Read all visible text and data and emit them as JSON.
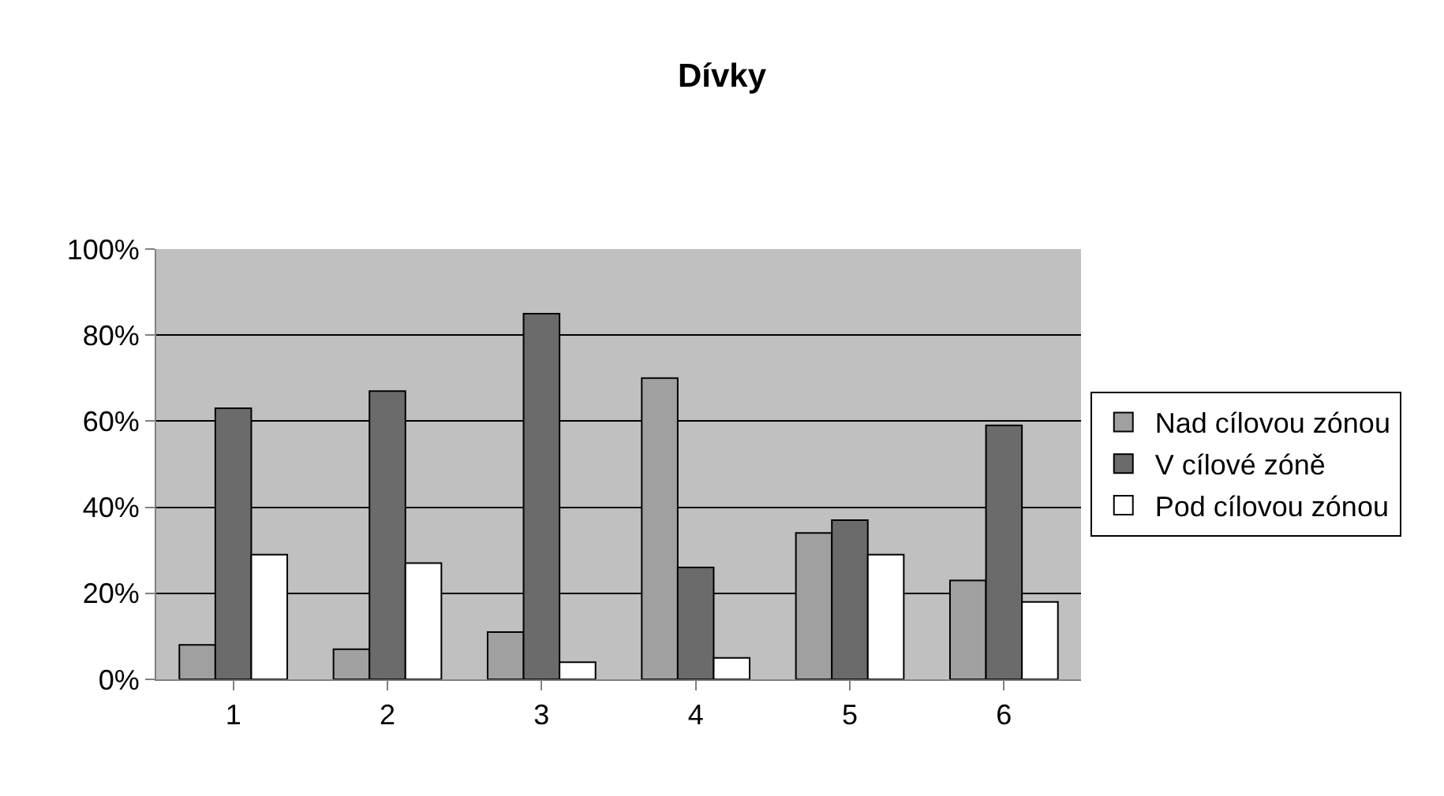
{
  "chart_data": {
    "type": "bar",
    "title": "Dívky",
    "categories": [
      "1",
      "2",
      "3",
      "4",
      "5",
      "6"
    ],
    "series": [
      {
        "name": "Nad cílovou zónou",
        "color": "#a0a0a0",
        "values": [
          8,
          7,
          11,
          70,
          34,
          23
        ]
      },
      {
        "name": "V cílové zóně",
        "color": "#6b6b6b",
        "values": [
          63,
          67,
          85,
          26,
          37,
          59
        ]
      },
      {
        "name": "Pod cílovou zónou",
        "color": "#ffffff",
        "values": [
          29,
          27,
          4,
          5,
          29,
          18
        ]
      }
    ],
    "ylim": [
      0,
      100
    ],
    "yticks": [
      {
        "value": 0,
        "label": "0%"
      },
      {
        "value": 20,
        "label": "20%"
      },
      {
        "value": 40,
        "label": "40%"
      },
      {
        "value": 60,
        "label": "60%"
      },
      {
        "value": 80,
        "label": "80%"
      },
      {
        "value": 100,
        "label": "100%"
      }
    ],
    "grid": "y",
    "legend": "right"
  }
}
